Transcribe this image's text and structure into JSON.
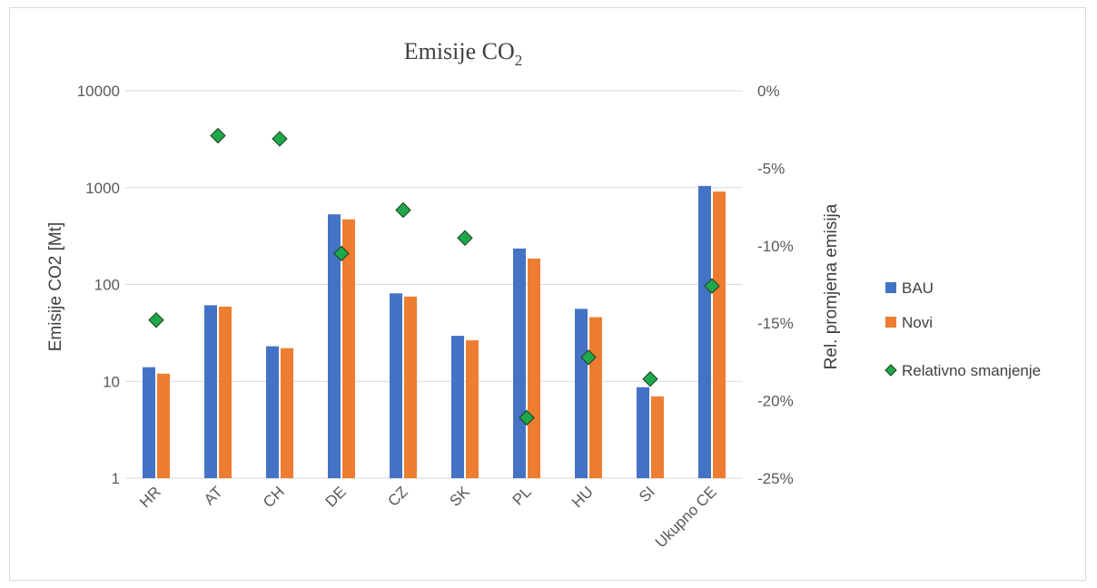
{
  "chart_data": {
    "type": "bar",
    "title": "Emisije CO",
    "title_subscript": "2",
    "categories": [
      "HR",
      "AT",
      "CH",
      "DE",
      "CZ",
      "SK",
      "PL",
      "HU",
      "SI",
      "Ukupno CE"
    ],
    "series": [
      {
        "name": "BAU",
        "color": "#4472c4",
        "axis": "left",
        "kind": "bar",
        "values": [
          14,
          61,
          23,
          530,
          81,
          29.5,
          235,
          56,
          8.7,
          1040
        ]
      },
      {
        "name": "Novi",
        "color": "#ed7d31",
        "axis": "left",
        "kind": "bar",
        "values": [
          12,
          59,
          22,
          470,
          75,
          26.5,
          185,
          46,
          7.0,
          910
        ]
      },
      {
        "name": "Relativno smanjenje",
        "color": "#1fa84b",
        "axis": "right",
        "kind": "scatter",
        "marker": "diamond",
        "values": [
          -14.8,
          -2.9,
          -3.1,
          -10.5,
          -7.7,
          -9.5,
          -21.1,
          -17.2,
          -18.6,
          -12.6
        ]
      }
    ],
    "ylabel": "Emisije CO2 [Mt]",
    "yscale": "log",
    "ylim": [
      1,
      10000
    ],
    "yticks": [
      "1",
      "10",
      "100",
      "1000",
      "10000"
    ],
    "y2label": "Rel. promjena emisija",
    "y2lim": [
      -25,
      0
    ],
    "y2ticks": [
      "-25%",
      "-20%",
      "-15%",
      "-10%",
      "-5%",
      "0%"
    ],
    "grid": true,
    "legend_position": "right"
  }
}
